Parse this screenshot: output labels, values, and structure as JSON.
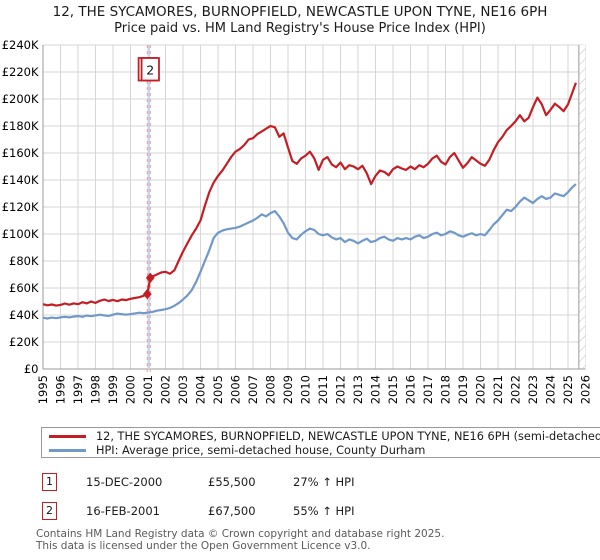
{
  "title": {
    "line1": "12, THE SYCAMORES, BURNOPFIELD, NEWCASTLE UPON TYNE, NE16 6PH",
    "line2": "Price paid vs. HM Land Registry's House Price Index (HPI)"
  },
  "chart_data": {
    "type": "line",
    "x_axis": {
      "ticks": [
        "1995",
        "1996",
        "1997",
        "1998",
        "1999",
        "2000",
        "2001",
        "2002",
        "2003",
        "2004",
        "2005",
        "2006",
        "2007",
        "2008",
        "2009",
        "2010",
        "2011",
        "2012",
        "2013",
        "2014",
        "2015",
        "2016",
        "2017",
        "2018",
        "2019",
        "2020",
        "2021",
        "2022",
        "2023",
        "2024",
        "2025",
        "2026"
      ],
      "range": [
        1995,
        2026
      ]
    },
    "y_axis": {
      "ticks": [
        {
          "v": 0,
          "label": "£0"
        },
        {
          "v": 20000,
          "label": "£20K"
        },
        {
          "v": 40000,
          "label": "£40K"
        },
        {
          "v": 60000,
          "label": "£60K"
        },
        {
          "v": 80000,
          "label": "£80K"
        },
        {
          "v": 100000,
          "label": "£100K"
        },
        {
          "v": 120000,
          "label": "£120K"
        },
        {
          "v": 140000,
          "label": "£140K"
        },
        {
          "v": 160000,
          "label": "£160K"
        },
        {
          "v": 180000,
          "label": "£180K"
        },
        {
          "v": 200000,
          "label": "£200K"
        },
        {
          "v": 220000,
          "label": "£220K"
        },
        {
          "v": 240000,
          "label": "£240K"
        }
      ],
      "range": [
        0,
        240000
      ]
    },
    "grid": true,
    "future_start": 2025.62,
    "annotation_colors": {
      "dash": "#ef999b",
      "band": "#c3d7ec"
    },
    "markers": [
      {
        "label": "1",
        "x": 2000.96,
        "value": 55500
      },
      {
        "label": "2",
        "x": 2001.13,
        "value": 67500
      }
    ],
    "series": [
      {
        "id": "price-paid",
        "name": "12, THE SYCAMORES, BURNOPFIELD, NEWCASTLE UPON TYNE, NE16 6PH (semi-detached house)",
        "color": "#c41e25",
        "points": [
          [
            1995.0,
            48000
          ],
          [
            1995.25,
            47200
          ],
          [
            1995.5,
            47800
          ],
          [
            1995.75,
            47000
          ],
          [
            1996.0,
            47500
          ],
          [
            1996.25,
            48500
          ],
          [
            1996.5,
            47600
          ],
          [
            1996.75,
            48600
          ],
          [
            1997.0,
            48000
          ],
          [
            1997.25,
            49500
          ],
          [
            1997.5,
            48600
          ],
          [
            1997.75,
            50000
          ],
          [
            1998.0,
            49000
          ],
          [
            1998.25,
            50500
          ],
          [
            1998.5,
            51500
          ],
          [
            1998.75,
            50400
          ],
          [
            1999.0,
            51200
          ],
          [
            1999.25,
            50200
          ],
          [
            1999.5,
            51500
          ],
          [
            1999.75,
            51000
          ],
          [
            2000.0,
            52000
          ],
          [
            2000.25,
            52600
          ],
          [
            2000.5,
            53200
          ],
          [
            2000.75,
            54200
          ],
          [
            2000.96,
            55500
          ],
          [
            2001.13,
            67500
          ],
          [
            2001.3,
            68800
          ],
          [
            2001.5,
            70000
          ],
          [
            2001.75,
            71500
          ],
          [
            2002.0,
            72000
          ],
          [
            2002.25,
            70500
          ],
          [
            2002.5,
            73000
          ],
          [
            2002.75,
            80000
          ],
          [
            2003.0,
            87000
          ],
          [
            2003.25,
            93000
          ],
          [
            2003.5,
            99000
          ],
          [
            2003.75,
            104000
          ],
          [
            2004.0,
            110000
          ],
          [
            2004.25,
            121000
          ],
          [
            2004.5,
            131000
          ],
          [
            2004.75,
            138000
          ],
          [
            2005.0,
            143000
          ],
          [
            2005.25,
            147000
          ],
          [
            2005.5,
            152000
          ],
          [
            2005.75,
            157000
          ],
          [
            2006.0,
            161000
          ],
          [
            2006.25,
            163000
          ],
          [
            2006.5,
            166000
          ],
          [
            2006.75,
            170000
          ],
          [
            2007.0,
            171000
          ],
          [
            2007.25,
            174000
          ],
          [
            2007.5,
            176000
          ],
          [
            2007.75,
            178000
          ],
          [
            2008.0,
            180000
          ],
          [
            2008.25,
            179000
          ],
          [
            2008.5,
            172000
          ],
          [
            2008.75,
            174500
          ],
          [
            2009.0,
            164000
          ],
          [
            2009.25,
            154000
          ],
          [
            2009.5,
            152000
          ],
          [
            2009.75,
            156000
          ],
          [
            2010.0,
            158000
          ],
          [
            2010.25,
            161000
          ],
          [
            2010.5,
            156000
          ],
          [
            2010.75,
            147500
          ],
          [
            2011.0,
            155000
          ],
          [
            2011.25,
            157000
          ],
          [
            2011.5,
            151500
          ],
          [
            2011.75,
            149500
          ],
          [
            2012.0,
            153000
          ],
          [
            2012.25,
            148000
          ],
          [
            2012.5,
            151000
          ],
          [
            2012.75,
            150000
          ],
          [
            2013.0,
            148000
          ],
          [
            2013.25,
            150500
          ],
          [
            2013.5,
            145000
          ],
          [
            2013.75,
            137000
          ],
          [
            2014.0,
            143000
          ],
          [
            2014.25,
            147000
          ],
          [
            2014.5,
            146000
          ],
          [
            2014.75,
            143500
          ],
          [
            2015.0,
            148000
          ],
          [
            2015.25,
            150000
          ],
          [
            2015.5,
            148500
          ],
          [
            2015.75,
            147500
          ],
          [
            2016.0,
            150000
          ],
          [
            2016.25,
            148000
          ],
          [
            2016.5,
            151000
          ],
          [
            2016.75,
            149500
          ],
          [
            2017.0,
            152000
          ],
          [
            2017.25,
            156000
          ],
          [
            2017.5,
            158000
          ],
          [
            2017.75,
            153500
          ],
          [
            2018.0,
            151500
          ],
          [
            2018.25,
            157000
          ],
          [
            2018.5,
            160000
          ],
          [
            2018.75,
            154500
          ],
          [
            2019.0,
            149000
          ],
          [
            2019.25,
            152500
          ],
          [
            2019.5,
            157000
          ],
          [
            2019.75,
            154500
          ],
          [
            2020.0,
            152000
          ],
          [
            2020.25,
            150500
          ],
          [
            2020.5,
            155000
          ],
          [
            2020.75,
            162000
          ],
          [
            2021.0,
            168000
          ],
          [
            2021.25,
            172000
          ],
          [
            2021.5,
            177000
          ],
          [
            2021.75,
            180000
          ],
          [
            2022.0,
            183500
          ],
          [
            2022.25,
            188000
          ],
          [
            2022.5,
            183500
          ],
          [
            2022.75,
            186000
          ],
          [
            2023.0,
            194000
          ],
          [
            2023.25,
            201000
          ],
          [
            2023.5,
            196000
          ],
          [
            2023.75,
            188000
          ],
          [
            2024.0,
            192000
          ],
          [
            2024.25,
            196500
          ],
          [
            2024.5,
            194000
          ],
          [
            2024.75,
            191000
          ],
          [
            2025.0,
            196000
          ],
          [
            2025.2,
            203000
          ],
          [
            2025.45,
            212000
          ]
        ]
      },
      {
        "id": "hpi",
        "name": "HPI: Average price, semi-detached house, County Durham",
        "color": "#7098c8",
        "points": [
          [
            1995.0,
            38000
          ],
          [
            1995.25,
            37400
          ],
          [
            1995.5,
            38100
          ],
          [
            1995.75,
            37600
          ],
          [
            1996.0,
            38200
          ],
          [
            1996.25,
            38700
          ],
          [
            1996.5,
            38200
          ],
          [
            1996.75,
            38800
          ],
          [
            1997.0,
            39200
          ],
          [
            1997.25,
            38700
          ],
          [
            1997.5,
            39600
          ],
          [
            1997.75,
            39100
          ],
          [
            1998.0,
            39700
          ],
          [
            1998.25,
            40200
          ],
          [
            1998.5,
            39700
          ],
          [
            1998.75,
            39300
          ],
          [
            1999.0,
            40200
          ],
          [
            1999.25,
            41000
          ],
          [
            1999.5,
            40600
          ],
          [
            1999.75,
            40200
          ],
          [
            2000.0,
            40700
          ],
          [
            2000.25,
            41200
          ],
          [
            2000.5,
            41700
          ],
          [
            2000.75,
            41300
          ],
          [
            2001.0,
            41800
          ],
          [
            2001.25,
            42300
          ],
          [
            2001.5,
            43200
          ],
          [
            2001.75,
            43700
          ],
          [
            2002.0,
            44300
          ],
          [
            2002.25,
            45200
          ],
          [
            2002.5,
            46800
          ],
          [
            2002.75,
            48800
          ],
          [
            2003.0,
            51500
          ],
          [
            2003.25,
            54500
          ],
          [
            2003.5,
            58500
          ],
          [
            2003.75,
            64500
          ],
          [
            2004.0,
            72000
          ],
          [
            2004.25,
            80000
          ],
          [
            2004.5,
            88000
          ],
          [
            2004.75,
            97000
          ],
          [
            2005.0,
            101000
          ],
          [
            2005.25,
            102500
          ],
          [
            2005.5,
            103500
          ],
          [
            2005.75,
            104000
          ],
          [
            2006.0,
            104500
          ],
          [
            2006.25,
            105500
          ],
          [
            2006.5,
            107000
          ],
          [
            2006.75,
            108500
          ],
          [
            2007.0,
            110000
          ],
          [
            2007.25,
            112000
          ],
          [
            2007.5,
            114500
          ],
          [
            2007.75,
            113000
          ],
          [
            2008.0,
            115500
          ],
          [
            2008.25,
            117000
          ],
          [
            2008.5,
            113000
          ],
          [
            2008.75,
            108000
          ],
          [
            2009.0,
            101000
          ],
          [
            2009.25,
            97000
          ],
          [
            2009.5,
            96000
          ],
          [
            2009.75,
            99500
          ],
          [
            2010.0,
            102000
          ],
          [
            2010.25,
            104000
          ],
          [
            2010.5,
            103000
          ],
          [
            2010.75,
            100000
          ],
          [
            2011.0,
            99000
          ],
          [
            2011.25,
            100000
          ],
          [
            2011.5,
            97500
          ],
          [
            2011.75,
            96000
          ],
          [
            2012.0,
            97000
          ],
          [
            2012.25,
            94000
          ],
          [
            2012.5,
            96000
          ],
          [
            2012.75,
            95000
          ],
          [
            2013.0,
            93000
          ],
          [
            2013.25,
            95000
          ],
          [
            2013.5,
            96500
          ],
          [
            2013.75,
            94000
          ],
          [
            2014.0,
            95000
          ],
          [
            2014.25,
            97000
          ],
          [
            2014.5,
            98000
          ],
          [
            2014.75,
            96000
          ],
          [
            2015.0,
            95000
          ],
          [
            2015.25,
            97000
          ],
          [
            2015.5,
            96000
          ],
          [
            2015.75,
            97000
          ],
          [
            2016.0,
            96000
          ],
          [
            2016.25,
            98000
          ],
          [
            2016.5,
            99000
          ],
          [
            2016.75,
            97000
          ],
          [
            2017.0,
            98000
          ],
          [
            2017.25,
            100000
          ],
          [
            2017.5,
            101000
          ],
          [
            2017.75,
            99000
          ],
          [
            2018.0,
            100000
          ],
          [
            2018.25,
            102000
          ],
          [
            2018.5,
            101000
          ],
          [
            2018.75,
            99000
          ],
          [
            2019.0,
            98000
          ],
          [
            2019.25,
            99500
          ],
          [
            2019.5,
            100500
          ],
          [
            2019.75,
            99000
          ],
          [
            2020.0,
            100000
          ],
          [
            2020.25,
            99000
          ],
          [
            2020.5,
            103000
          ],
          [
            2020.75,
            107000
          ],
          [
            2021.0,
            110000
          ],
          [
            2021.25,
            114000
          ],
          [
            2021.5,
            118000
          ],
          [
            2021.75,
            117000
          ],
          [
            2022.0,
            120000
          ],
          [
            2022.25,
            124000
          ],
          [
            2022.5,
            127000
          ],
          [
            2022.75,
            125000
          ],
          [
            2023.0,
            123000
          ],
          [
            2023.25,
            126000
          ],
          [
            2023.5,
            128000
          ],
          [
            2023.75,
            126000
          ],
          [
            2024.0,
            127000
          ],
          [
            2024.25,
            130000
          ],
          [
            2024.5,
            129000
          ],
          [
            2024.75,
            128000
          ],
          [
            2025.0,
            131000
          ],
          [
            2025.2,
            134000
          ],
          [
            2025.45,
            137000
          ]
        ]
      }
    ],
    "legend_position": "bottom"
  },
  "legend": {
    "items": [
      {
        "label": "12, THE SYCAMORES, BURNOPFIELD, NEWCASTLE UPON TYNE, NE16 6PH (semi-detached house)",
        "color": "#c41e25"
      },
      {
        "label": "HPI: Average price, semi-detached house, County Durham",
        "color": "#7098c8"
      }
    ]
  },
  "transactions": [
    {
      "num": "1",
      "date": "15-DEC-2000",
      "price": "£55,500",
      "hpi": "27% ↑ HPI"
    },
    {
      "num": "2",
      "date": "16-FEB-2001",
      "price": "£67,500",
      "hpi": "55% ↑ HPI"
    }
  ],
  "footer": {
    "line1": "Contains HM Land Registry data © Crown copyright and database right 2025.",
    "line2": "This data is licensed under the Open Government Licence v3.0."
  }
}
